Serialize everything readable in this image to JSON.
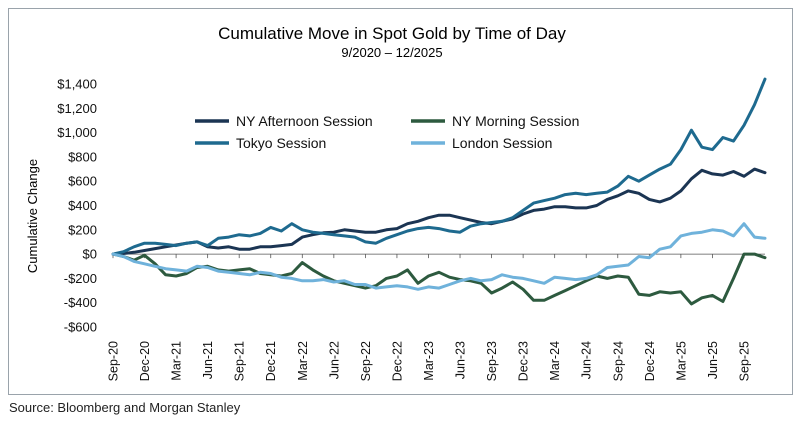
{
  "source": "Source: Bloomberg and Morgan Stanley",
  "chart_data": {
    "type": "line",
    "title": "Cumulative Move in Spot Gold by Time of Day",
    "subtitle": "9/2020 – 12/2025",
    "ylabel": "Cumulative Change",
    "xlabel": "",
    "ylim": [
      -600,
      1400
    ],
    "yticks": [
      -600,
      -400,
      -200,
      0,
      200,
      400,
      600,
      800,
      1000,
      1200,
      1400
    ],
    "ytick_labels": [
      "-$600",
      "-$400",
      "-$200",
      "$0",
      "$200",
      "$400",
      "$600",
      "$800",
      "$1,000",
      "$1,200",
      "$1,400"
    ],
    "x_tick_labels": [
      "Sep-20",
      "Dec-20",
      "Mar-21",
      "Jun-21",
      "Sep-21",
      "Dec-21",
      "Mar-22",
      "Jun-22",
      "Sep-22",
      "Dec-22",
      "Mar-23",
      "Jun-23",
      "Sep-23",
      "Dec-23",
      "Mar-24",
      "Jun-24",
      "Sep-24",
      "Dec-24",
      "Mar-25",
      "Jun-25",
      "Sep-25"
    ],
    "x_tick_step": 3,
    "x": [
      "2020-09",
      "2020-10",
      "2020-11",
      "2020-12",
      "2021-01",
      "2021-02",
      "2021-03",
      "2021-04",
      "2021-05",
      "2021-06",
      "2021-07",
      "2021-08",
      "2021-09",
      "2021-10",
      "2021-11",
      "2021-12",
      "2022-01",
      "2022-02",
      "2022-03",
      "2022-04",
      "2022-05",
      "2022-06",
      "2022-07",
      "2022-08",
      "2022-09",
      "2022-10",
      "2022-11",
      "2022-12",
      "2023-01",
      "2023-02",
      "2023-03",
      "2023-04",
      "2023-05",
      "2023-06",
      "2023-07",
      "2023-08",
      "2023-09",
      "2023-10",
      "2023-11",
      "2023-12",
      "2024-01",
      "2024-02",
      "2024-03",
      "2024-04",
      "2024-05",
      "2024-06",
      "2024-07",
      "2024-08",
      "2024-09",
      "2024-10",
      "2024-11",
      "2024-12",
      "2025-01",
      "2025-02",
      "2025-03",
      "2025-04",
      "2025-05",
      "2025-06",
      "2025-07",
      "2025-08",
      "2025-09",
      "2025-10",
      "2025-11"
    ],
    "grid": false,
    "legend_position": "top-left, inside plot",
    "series": [
      {
        "name": "NY Afternoon Session",
        "color": "#1b3553",
        "values": [
          0,
          5,
          15,
          30,
          45,
          60,
          75,
          90,
          100,
          60,
          50,
          60,
          40,
          40,
          60,
          60,
          70,
          80,
          140,
          160,
          175,
          180,
          200,
          190,
          180,
          180,
          200,
          210,
          250,
          270,
          300,
          320,
          320,
          300,
          280,
          260,
          250,
          270,
          290,
          330,
          360,
          370,
          390,
          390,
          380,
          380,
          400,
          450,
          480,
          520,
          500,
          450,
          430,
          460,
          520,
          620,
          690,
          660,
          650,
          680,
          640,
          700,
          670
        ]
      },
      {
        "name": "NY Morning Session",
        "color": "#2d5a3f",
        "values": [
          0,
          -20,
          -50,
          -10,
          -80,
          -170,
          -180,
          -160,
          -110,
          -100,
          -130,
          -140,
          -130,
          -120,
          -160,
          -170,
          -180,
          -160,
          -70,
          -130,
          -180,
          -220,
          -240,
          -260,
          -280,
          -260,
          -200,
          -180,
          -130,
          -240,
          -180,
          -150,
          -190,
          -210,
          -220,
          -240,
          -320,
          -280,
          -230,
          -290,
          -380,
          -380,
          -340,
          -300,
          -260,
          -220,
          -180,
          -200,
          -180,
          -190,
          -330,
          -340,
          -310,
          -320,
          -310,
          -410,
          -360,
          -340,
          -390,
          -200,
          0,
          0,
          -30
        ]
      },
      {
        "name": "Tokyo Session",
        "color": "#1e6a8f",
        "values": [
          0,
          20,
          60,
          90,
          90,
          80,
          70,
          90,
          100,
          70,
          130,
          140,
          160,
          150,
          170,
          220,
          190,
          250,
          200,
          180,
          170,
          160,
          150,
          140,
          100,
          90,
          130,
          160,
          190,
          210,
          220,
          210,
          190,
          180,
          230,
          250,
          260,
          270,
          300,
          360,
          420,
          440,
          460,
          490,
          500,
          490,
          500,
          510,
          560,
          640,
          600,
          650,
          700,
          740,
          860,
          1020,
          880,
          860,
          960,
          930,
          1060,
          1230,
          1440
        ]
      },
      {
        "name": "London Session",
        "color": "#6fb2db",
        "values": [
          0,
          -20,
          -60,
          -80,
          -100,
          -120,
          -130,
          -140,
          -100,
          -110,
          -140,
          -150,
          -160,
          -170,
          -150,
          -160,
          -190,
          -200,
          -220,
          -220,
          -210,
          -230,
          -220,
          -250,
          -250,
          -280,
          -270,
          -260,
          -270,
          -290,
          -270,
          -280,
          -250,
          -220,
          -200,
          -220,
          -210,
          -170,
          -190,
          -200,
          -220,
          -240,
          -190,
          -200,
          -210,
          -200,
          -170,
          -110,
          -100,
          -90,
          -20,
          -30,
          40,
          60,
          150,
          170,
          180,
          200,
          190,
          150,
          250,
          140,
          130
        ]
      }
    ]
  }
}
